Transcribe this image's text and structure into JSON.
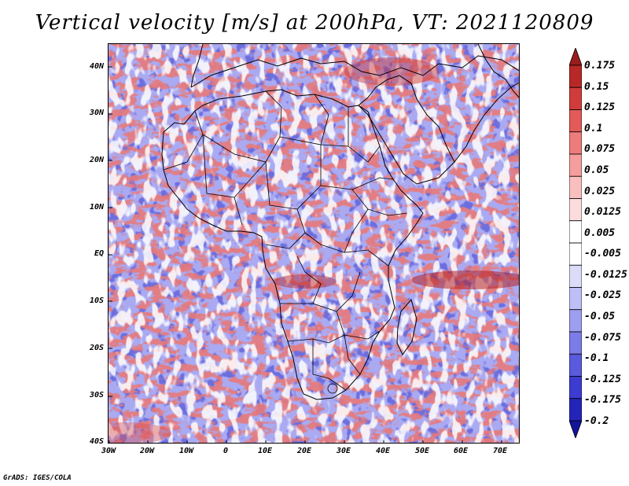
{
  "title": "Vertical velocity [m/s] at 200hPa, VT: 2021120809",
  "footer": "GrADS: IGES/COLA",
  "axes": {
    "lat_labels": [
      "40N",
      "30N",
      "20N",
      "10N",
      "EQ",
      "10S",
      "20S",
      "30S",
      "40S"
    ],
    "lon_labels": [
      "30W",
      "20W",
      "10W",
      "0",
      "10E",
      "20E",
      "30E",
      "40E",
      "50E",
      "60E",
      "70E"
    ]
  },
  "colorbar": {
    "labels": [
      "0.175",
      "0.15",
      "0.125",
      "0.1",
      "0.075",
      "0.05",
      "0.025",
      "0.0125",
      "0.005",
      "-0.005",
      "-0.0125",
      "-0.025",
      "-0.05",
      "-0.075",
      "-0.1",
      "-0.125",
      "-0.175",
      "-0.2"
    ],
    "colors": [
      "#9b1c1c",
      "#b82828",
      "#d03c3c",
      "#e25a5a",
      "#ee7c7c",
      "#f59e9e",
      "#f9bfbf",
      "#fcdcdc",
      "#ffffff",
      "#ffffff",
      "#dcdcf9",
      "#bfbff6",
      "#9e9ef0",
      "#7c7ce8",
      "#5a5adc",
      "#3c3cd0",
      "#2424b8",
      "#14149a"
    ]
  }
}
